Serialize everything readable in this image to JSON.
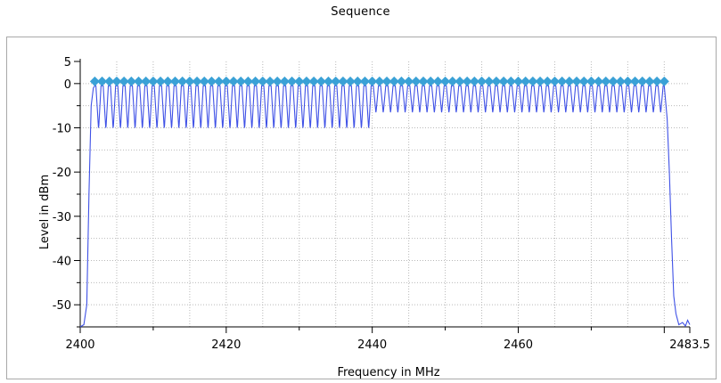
{
  "chart_data": {
    "type": "line",
    "title": "Sequence",
    "xlabel": "Frequency in MHz",
    "ylabel": "Level in dBm",
    "xlim": [
      2400,
      2483.5
    ],
    "ylim": [
      -55,
      5
    ],
    "x_ticks": [
      "2400",
      "2420",
      "2440",
      "2460",
      "2483.5"
    ],
    "y_ticks": [
      "5",
      "0",
      "-10",
      "-20",
      "-30",
      "-40",
      "-50"
    ],
    "grid": true,
    "legend": "none",
    "colors": {
      "trace": "#3f51e6",
      "markers": "#3aa1d6",
      "grid": "#b9b9b9",
      "frame": "#a9a9a9"
    },
    "series": [
      {
        "style": "line",
        "values_description_points": {
          "x": [
            2400.0,
            2400.5,
            2400.9,
            2401.2,
            2401.5,
            2401.8,
            2402.0
          ],
          "y": [
            -55.0,
            -54.5,
            -50.0,
            -25.0,
            -5.0,
            -1.0,
            -0.5
          ]
        },
        "comb": {
          "start": 2402,
          "stop": 2480,
          "step": 1,
          "peak_level": -0.5,
          "notch_level_low_band": -9.5,
          "notch_level_high_band": -6.0,
          "transition_at": 2440
        },
        "tail_points": {
          "x": [
            2480.0,
            2480.4,
            2480.7,
            2481.0,
            2481.3,
            2481.6,
            2482.0,
            2482.5,
            2482.9,
            2483.2,
            2483.5
          ],
          "y": [
            -0.5,
            -8.0,
            -20.0,
            -35.0,
            -48.0,
            -52.0,
            -54.5,
            -54.0,
            -54.8,
            -53.5,
            -54.5
          ]
        }
      },
      {
        "style": "markers",
        "marker": "diamond",
        "x_start": 2402,
        "x_stop": 2480,
        "x_step": 1,
        "y": 0.5
      }
    ]
  }
}
